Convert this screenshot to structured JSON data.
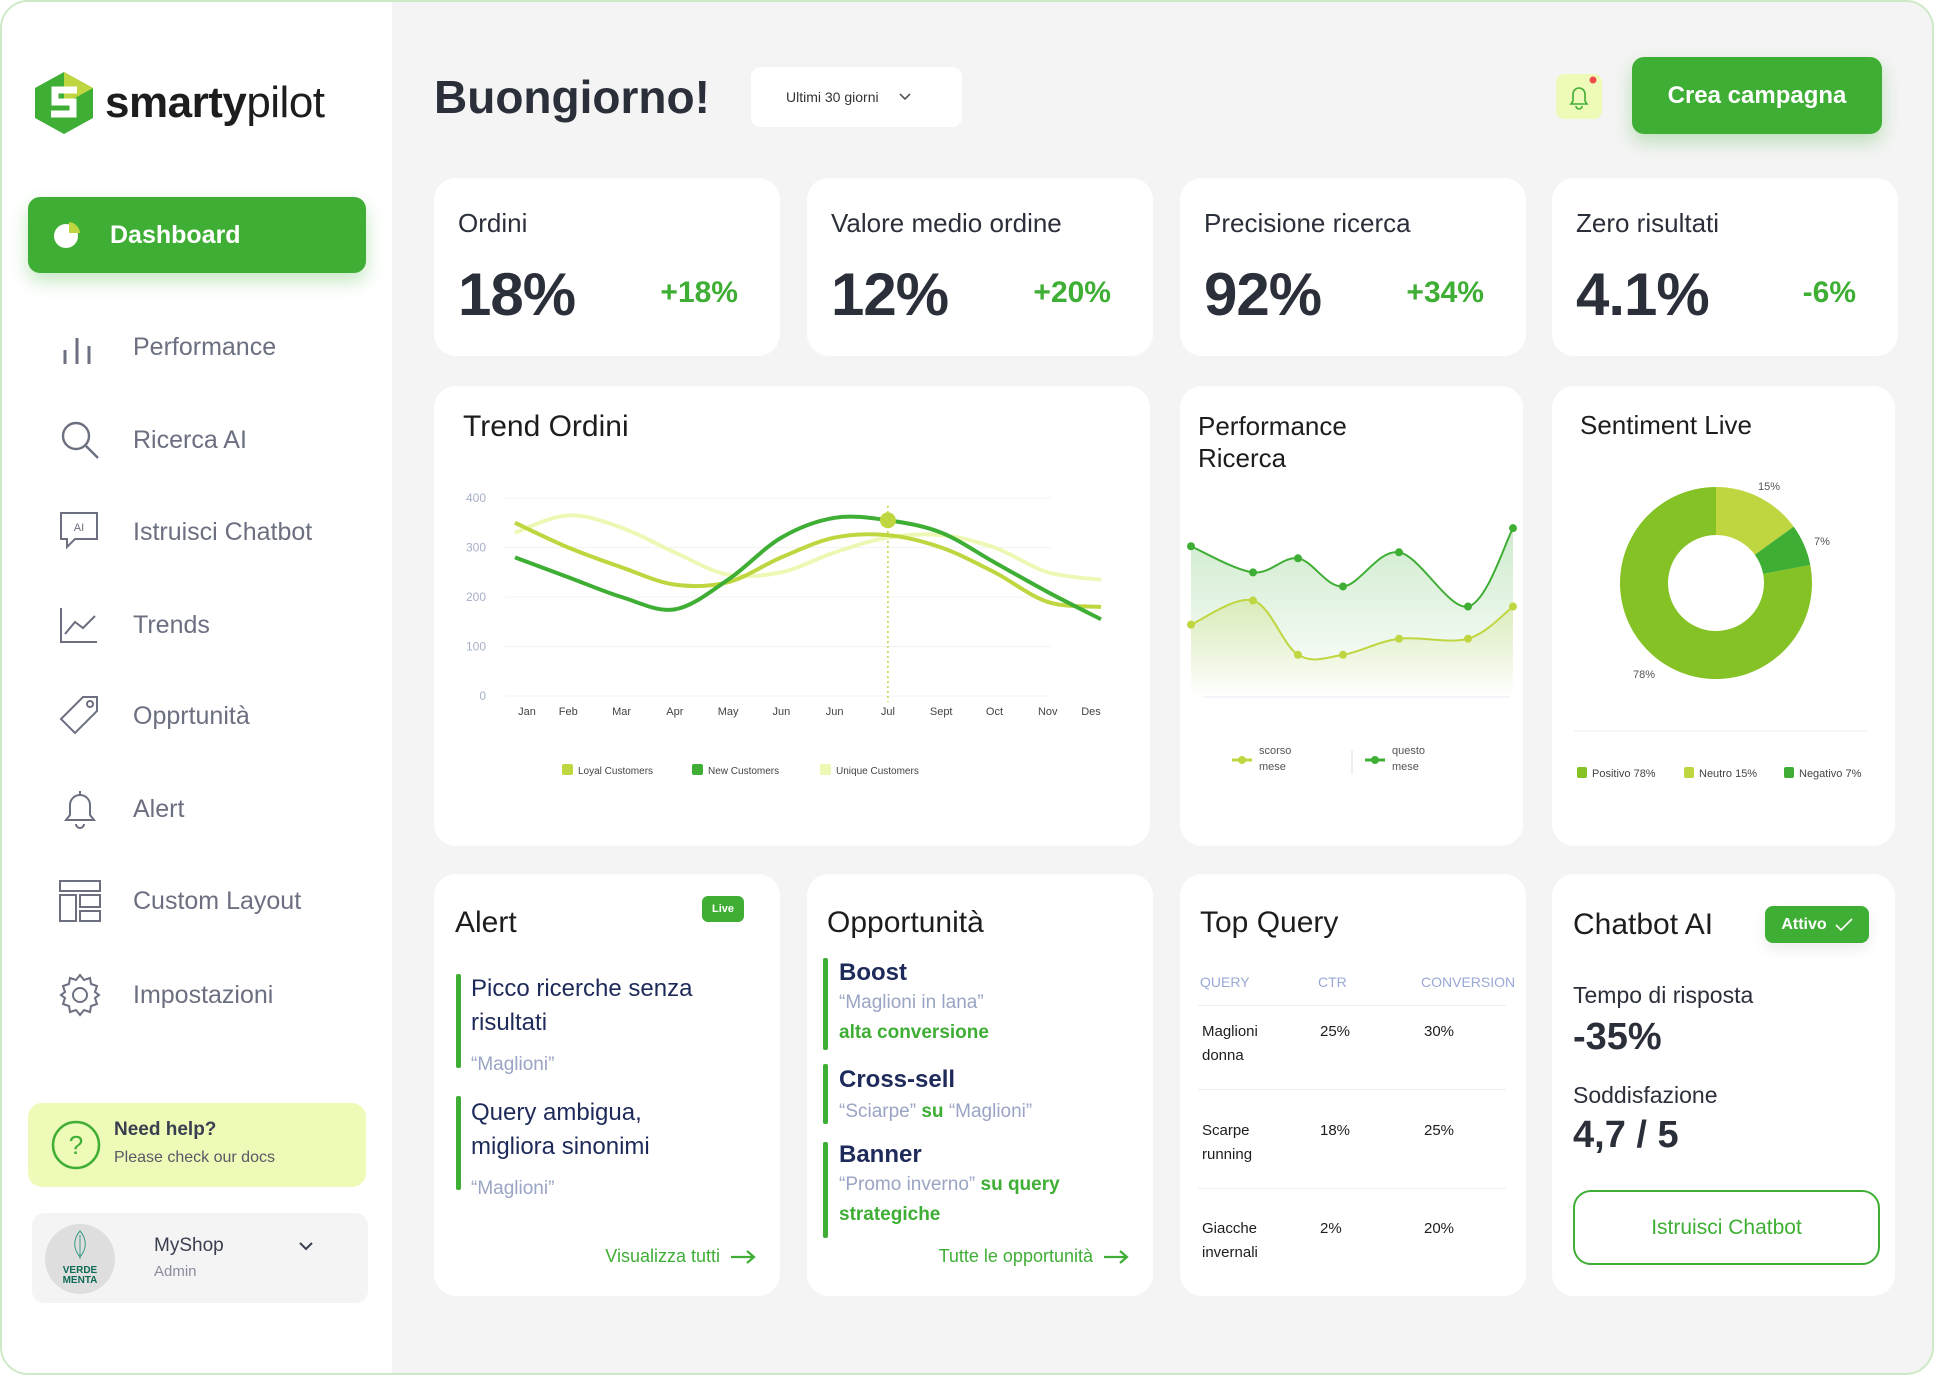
{
  "brand": {
    "name_bold": "smarty",
    "name_light": "pilot",
    "primary": "#3fae35",
    "accent": "#c0d640"
  },
  "sidebar": {
    "active": {
      "label": "Dashboard",
      "icon": "pie-chart-icon"
    },
    "items": [
      {
        "label": "Performance",
        "icon": "bar-chart-icon"
      },
      {
        "label": "Ricerca AI",
        "icon": "search-icon"
      },
      {
        "label": "Istruisci Chatbot",
        "icon": "ai-chat-icon",
        "icon_text": "AI"
      },
      {
        "label": "Trends",
        "icon": "line-chart-icon"
      },
      {
        "label": "Opprtunità",
        "icon": "tag-icon"
      },
      {
        "label": "Alert",
        "icon": "bell-icon"
      },
      {
        "label": "Custom Layout",
        "icon": "layout-icon"
      },
      {
        "label": "Impostazioni",
        "icon": "gear-icon"
      }
    ],
    "help": {
      "title": "Need help?",
      "subtitle": "Please check our docs"
    },
    "account": {
      "name": "MyShop",
      "role": "Admin",
      "avatar_text": "VERDE MENTA"
    }
  },
  "header": {
    "greeting": "Buongiorno!",
    "range": "Ultimi 30 giorni",
    "cta": "Crea campagna"
  },
  "kpis": [
    {
      "label": "Ordini",
      "value": "18%",
      "delta": "+18%"
    },
    {
      "label": "Valore medio ordine",
      "value": "12%",
      "delta": "+20%"
    },
    {
      "label": "Precisione ricerca",
      "value": "92%",
      "delta": "+34%"
    },
    {
      "label": "Zero risultati",
      "value": "4.1%",
      "delta": "-6%"
    }
  ],
  "trend": {
    "title": "Trend Ordini"
  },
  "perf": {
    "title1": "Performance",
    "title2": "Ricerca"
  },
  "sentiment": {
    "title": "Sentiment Live"
  },
  "chart_data": [
    {
      "type": "line",
      "title": "Trend Ordini",
      "ylim": [
        0,
        400
      ],
      "yticks": [
        0,
        100,
        200,
        300,
        400
      ],
      "grid": true,
      "legend": "bottom",
      "categories": [
        "Jan",
        "Feb",
        "Mar",
        "Apr",
        "May",
        "Jun",
        "Jun",
        "Jul",
        "Sept",
        "Oct",
        "Nov",
        "Des"
      ],
      "highlight_index": 7,
      "series": [
        {
          "name": "Loyal Customers",
          "color": "#c0d640",
          "values": [
            350,
            300,
            260,
            225,
            230,
            280,
            320,
            325,
            300,
            250,
            190,
            180
          ]
        },
        {
          "name": "New Customers",
          "color": "#3fae35",
          "values": [
            280,
            240,
            200,
            175,
            235,
            320,
            360,
            355,
            330,
            270,
            210,
            155
          ]
        },
        {
          "name": "Unique Customers",
          "color": "#eef8b5",
          "values": [
            330,
            365,
            340,
            290,
            245,
            250,
            290,
            320,
            325,
            300,
            250,
            235
          ]
        }
      ]
    },
    {
      "type": "area",
      "title": "Performance Ricerca",
      "legend": "bottom",
      "series": [
        {
          "name": "scorso mese",
          "color": "#c0d640",
          "values": [
            36,
            48,
            21,
            21,
            29,
            29,
            45
          ]
        },
        {
          "name": "questo mese",
          "color": "#3fae35",
          "values": [
            75,
            62,
            69,
            55,
            72,
            45,
            84
          ]
        }
      ],
      "legend_labels": [
        [
          "scorso",
          "mese"
        ],
        [
          "questo",
          "mese"
        ]
      ]
    },
    {
      "type": "pie",
      "title": "Sentiment Live",
      "donut": true,
      "legend": "bottom",
      "slices": [
        {
          "name": "Neutro",
          "value": 15,
          "label": "15%",
          "legend": "Neutro 15%",
          "color": "#c0d640"
        },
        {
          "name": "Negativo",
          "value": 7,
          "label": "7%",
          "legend": "Negativo 7%",
          "color": "#3fae35"
        },
        {
          "name": "Positivo",
          "value": 78,
          "label": "78%",
          "legend": "Positivo 78%",
          "color": "#84c225"
        }
      ]
    }
  ],
  "alert": {
    "title": "Alert",
    "badge": "Live",
    "items": [
      {
        "line1": "Picco ricerche senza",
        "line2": "risultati",
        "quote": "“Maglioni”"
      },
      {
        "line1": "Query ambigua,",
        "line2": "migliora sinonimi",
        "quote": "“Maglioni”"
      }
    ],
    "link": "Visualizza tutti"
  },
  "opp": {
    "title": "Opportunità",
    "boost": {
      "title": "Boost",
      "quote": "“Maglioni in lana”",
      "note": "alta conversione"
    },
    "cross": {
      "title": "Cross-sell",
      "q1": "“Sciarpe”",
      "mid": " su ",
      "q2": "“Maglioni”"
    },
    "banner": {
      "title": "Banner",
      "q": "“Promo inverno”",
      "n1": " su query",
      "n2": "strategiche"
    },
    "link": "Tutte le opportunità"
  },
  "topquery": {
    "title": "Top Query",
    "headers": [
      "QUERY",
      "CTR",
      "CONVERSION"
    ],
    "rows": [
      {
        "q1": "Maglioni",
        "q2": "donna",
        "ctr": "25%",
        "conv": "30%"
      },
      {
        "q1": "Scarpe",
        "q2": "running",
        "ctr": "18%",
        "conv": "25%"
      },
      {
        "q1": "Giacche",
        "q2": "invernali",
        "ctr": "2%",
        "conv": "20%"
      }
    ]
  },
  "chatbot": {
    "title": "Chatbot AI",
    "badge": "Attivo",
    "l1": "Tempo di risposta",
    "v1": "-35%",
    "l2": "Soddisfazione",
    "v2": "4,7 / 5",
    "button": "Istruisci Chatbot"
  }
}
